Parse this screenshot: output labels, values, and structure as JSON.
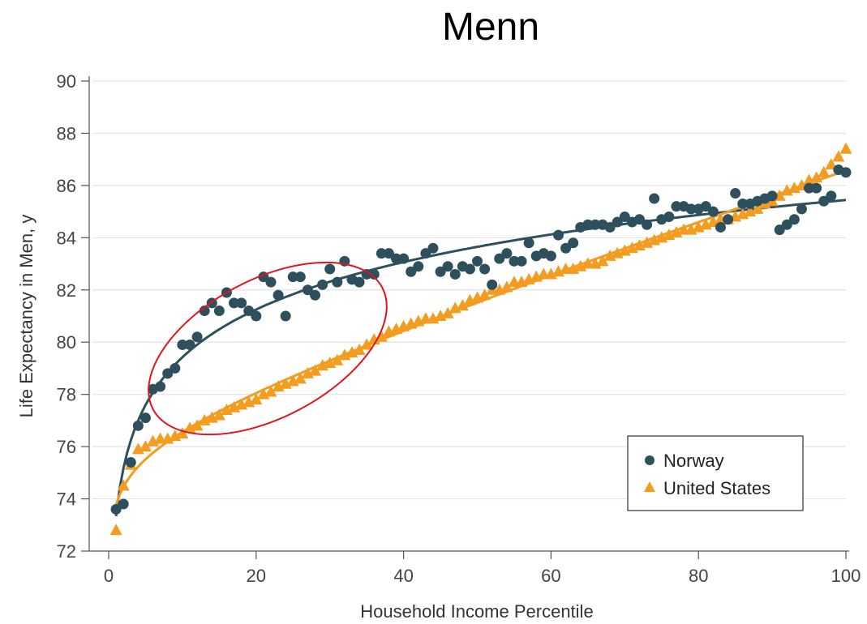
{
  "title": "Menn",
  "chart_data": {
    "type": "scatter",
    "xlabel": "Household Income Percentile",
    "ylabel": "Life Expectancy in Men, y",
    "xlim": [
      0,
      100
    ],
    "ylim": [
      72,
      90
    ],
    "xticks": [
      0,
      20,
      40,
      60,
      80,
      100
    ],
    "yticks": [
      72,
      74,
      76,
      78,
      80,
      82,
      84,
      86,
      88,
      90
    ],
    "grid": "horizontal",
    "legend_position": "bottom-right",
    "annotation": "red ellipse highlighting percentiles ~5-38",
    "series": [
      {
        "name": "Norway",
        "marker": "circle",
        "color": "#2e4f5c",
        "x": [
          1,
          2,
          3,
          4,
          5,
          6,
          7,
          8,
          9,
          10,
          11,
          12,
          13,
          14,
          15,
          16,
          17,
          18,
          19,
          20,
          21,
          22,
          23,
          24,
          25,
          26,
          27,
          28,
          29,
          30,
          31,
          32,
          33,
          34,
          35,
          36,
          37,
          38,
          39,
          40,
          41,
          42,
          43,
          44,
          45,
          46,
          47,
          48,
          49,
          50,
          51,
          52,
          53,
          54,
          55,
          56,
          57,
          58,
          59,
          60,
          61,
          62,
          63,
          64,
          65,
          66,
          67,
          68,
          69,
          70,
          71,
          72,
          73,
          74,
          75,
          76,
          77,
          78,
          79,
          80,
          81,
          82,
          83,
          84,
          85,
          86,
          87,
          88,
          89,
          90,
          91,
          92,
          93,
          94,
          95,
          96,
          97,
          98,
          99,
          100
        ],
        "y": [
          73.6,
          73.8,
          75.4,
          76.8,
          77.1,
          78.2,
          78.3,
          78.8,
          79.0,
          79.9,
          79.9,
          80.2,
          81.2,
          81.5,
          81.2,
          81.9,
          81.5,
          81.5,
          81.2,
          81.0,
          82.5,
          82.3,
          81.8,
          81.0,
          82.5,
          82.5,
          82.0,
          81.8,
          82.2,
          82.8,
          82.3,
          83.1,
          82.4,
          82.3,
          82.6,
          82.6,
          83.4,
          83.4,
          83.2,
          83.2,
          82.7,
          82.9,
          83.4,
          83.6,
          82.7,
          82.9,
          82.6,
          82.9,
          82.8,
          83.1,
          82.8,
          82.2,
          83.2,
          83.4,
          83.1,
          83.1,
          83.8,
          83.3,
          83.4,
          83.3,
          84.1,
          83.6,
          83.8,
          84.4,
          84.5,
          84.5,
          84.5,
          84.4,
          84.6,
          84.8,
          84.6,
          84.7,
          84.5,
          85.5,
          84.7,
          84.8,
          85.2,
          85.2,
          85.1,
          85.1,
          85.2,
          85.0,
          84.4,
          84.7,
          85.7,
          85.3,
          85.3,
          85.4,
          85.5,
          85.6,
          84.3,
          84.5,
          84.7,
          85.1,
          85.9,
          85.9,
          85.4,
          85.6,
          86.6,
          86.5
        ]
      },
      {
        "name": "United States",
        "marker": "triangle",
        "color": "#f39c1f",
        "x": [
          1,
          2,
          3,
          4,
          5,
          6,
          7,
          8,
          9,
          10,
          11,
          12,
          13,
          14,
          15,
          16,
          17,
          18,
          19,
          20,
          21,
          22,
          23,
          24,
          25,
          26,
          27,
          28,
          29,
          30,
          31,
          32,
          33,
          34,
          35,
          36,
          37,
          38,
          39,
          40,
          41,
          42,
          43,
          44,
          45,
          46,
          47,
          48,
          49,
          50,
          51,
          52,
          53,
          54,
          55,
          56,
          57,
          58,
          59,
          60,
          61,
          62,
          63,
          64,
          65,
          66,
          67,
          68,
          69,
          70,
          71,
          72,
          73,
          74,
          75,
          76,
          77,
          78,
          79,
          80,
          81,
          82,
          83,
          84,
          85,
          86,
          87,
          88,
          89,
          90,
          91,
          92,
          93,
          94,
          95,
          96,
          97,
          98,
          99,
          100
        ],
        "y": [
          72.8,
          74.5,
          75.3,
          75.9,
          76.0,
          76.2,
          76.3,
          76.3,
          76.4,
          76.5,
          76.7,
          76.8,
          77.0,
          77.1,
          77.2,
          77.4,
          77.5,
          77.6,
          77.7,
          77.8,
          78.0,
          78.1,
          78.3,
          78.4,
          78.5,
          78.6,
          78.8,
          78.9,
          79.1,
          79.2,
          79.3,
          79.5,
          79.6,
          79.7,
          79.9,
          80.1,
          80.2,
          80.4,
          80.5,
          80.6,
          80.7,
          80.8,
          80.9,
          80.9,
          81.0,
          81.1,
          81.3,
          81.4,
          81.6,
          81.7,
          81.8,
          82.0,
          82.0,
          82.1,
          82.3,
          82.3,
          82.4,
          82.5,
          82.6,
          82.6,
          82.7,
          82.8,
          82.8,
          82.9,
          83.0,
          83.0,
          83.1,
          83.3,
          83.4,
          83.5,
          83.6,
          83.7,
          83.8,
          83.9,
          84.0,
          84.1,
          84.2,
          84.3,
          84.3,
          84.4,
          84.5,
          84.6,
          84.7,
          84.7,
          84.8,
          84.9,
          85.0,
          85.1,
          85.3,
          85.4,
          85.6,
          85.8,
          85.9,
          86.0,
          86.2,
          86.3,
          86.5,
          86.8,
          87.1,
          87.4
        ]
      }
    ]
  }
}
